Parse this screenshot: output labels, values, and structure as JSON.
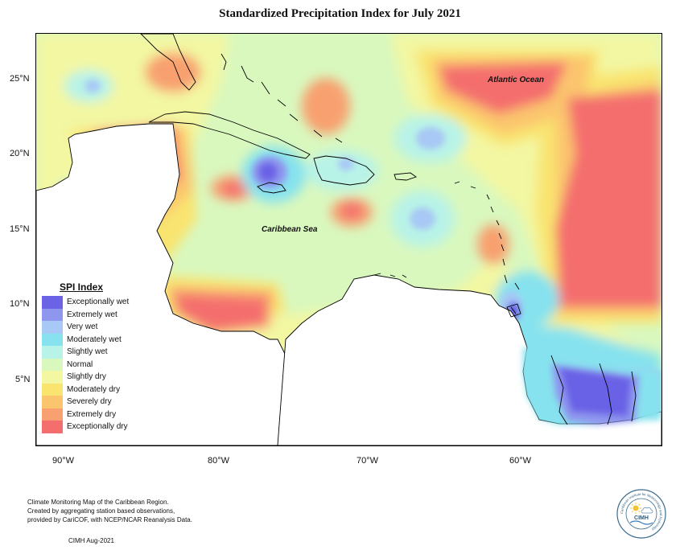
{
  "title": "Standardized Precipitation Index for July 2021",
  "axes": {
    "lat_ticks": [
      "25°N",
      "20°N",
      "15°N",
      "10°N",
      "5°N"
    ],
    "lon_ticks": [
      "90°W",
      "80°W",
      "70°W",
      "60°W"
    ]
  },
  "labels": {
    "atlantic": "Atlantic Ocean",
    "caribbean": "Caribbean Sea"
  },
  "legend": {
    "title": "SPI Index",
    "items": [
      {
        "label": "Exceptionally wet",
        "color": "#6b62e6"
      },
      {
        "label": "Extremely wet",
        "color": "#8f96ee"
      },
      {
        "label": "Very wet",
        "color": "#a8c8f5"
      },
      {
        "label": "Moderately wet",
        "color": "#86e2ee"
      },
      {
        "label": "Slightly wet",
        "color": "#b8f3e8"
      },
      {
        "label": "Normal",
        "color": "#d9f8be"
      },
      {
        "label": "Slightly dry",
        "color": "#f3f7a2"
      },
      {
        "label": "Moderately dry",
        "color": "#f9e470"
      },
      {
        "label": "Severely dry",
        "color": "#fbc56e"
      },
      {
        "label": "Extremely dry",
        "color": "#f8a070"
      },
      {
        "label": "Exceptionally dry",
        "color": "#f46e6e"
      }
    ]
  },
  "credits": {
    "line1": "Climate Monitoring Map of the Caribbean Region.",
    "line2": "Created by aggregating station based observations,",
    "line3": "provided by CariCOF, with NCEP/NCAR Reanalysis Data.",
    "signature": "CIMH Aug-2021"
  },
  "logo": {
    "text": "CIMH",
    "ring_text": "Caribbean Institute for Meteorology and Hydrology"
  }
}
